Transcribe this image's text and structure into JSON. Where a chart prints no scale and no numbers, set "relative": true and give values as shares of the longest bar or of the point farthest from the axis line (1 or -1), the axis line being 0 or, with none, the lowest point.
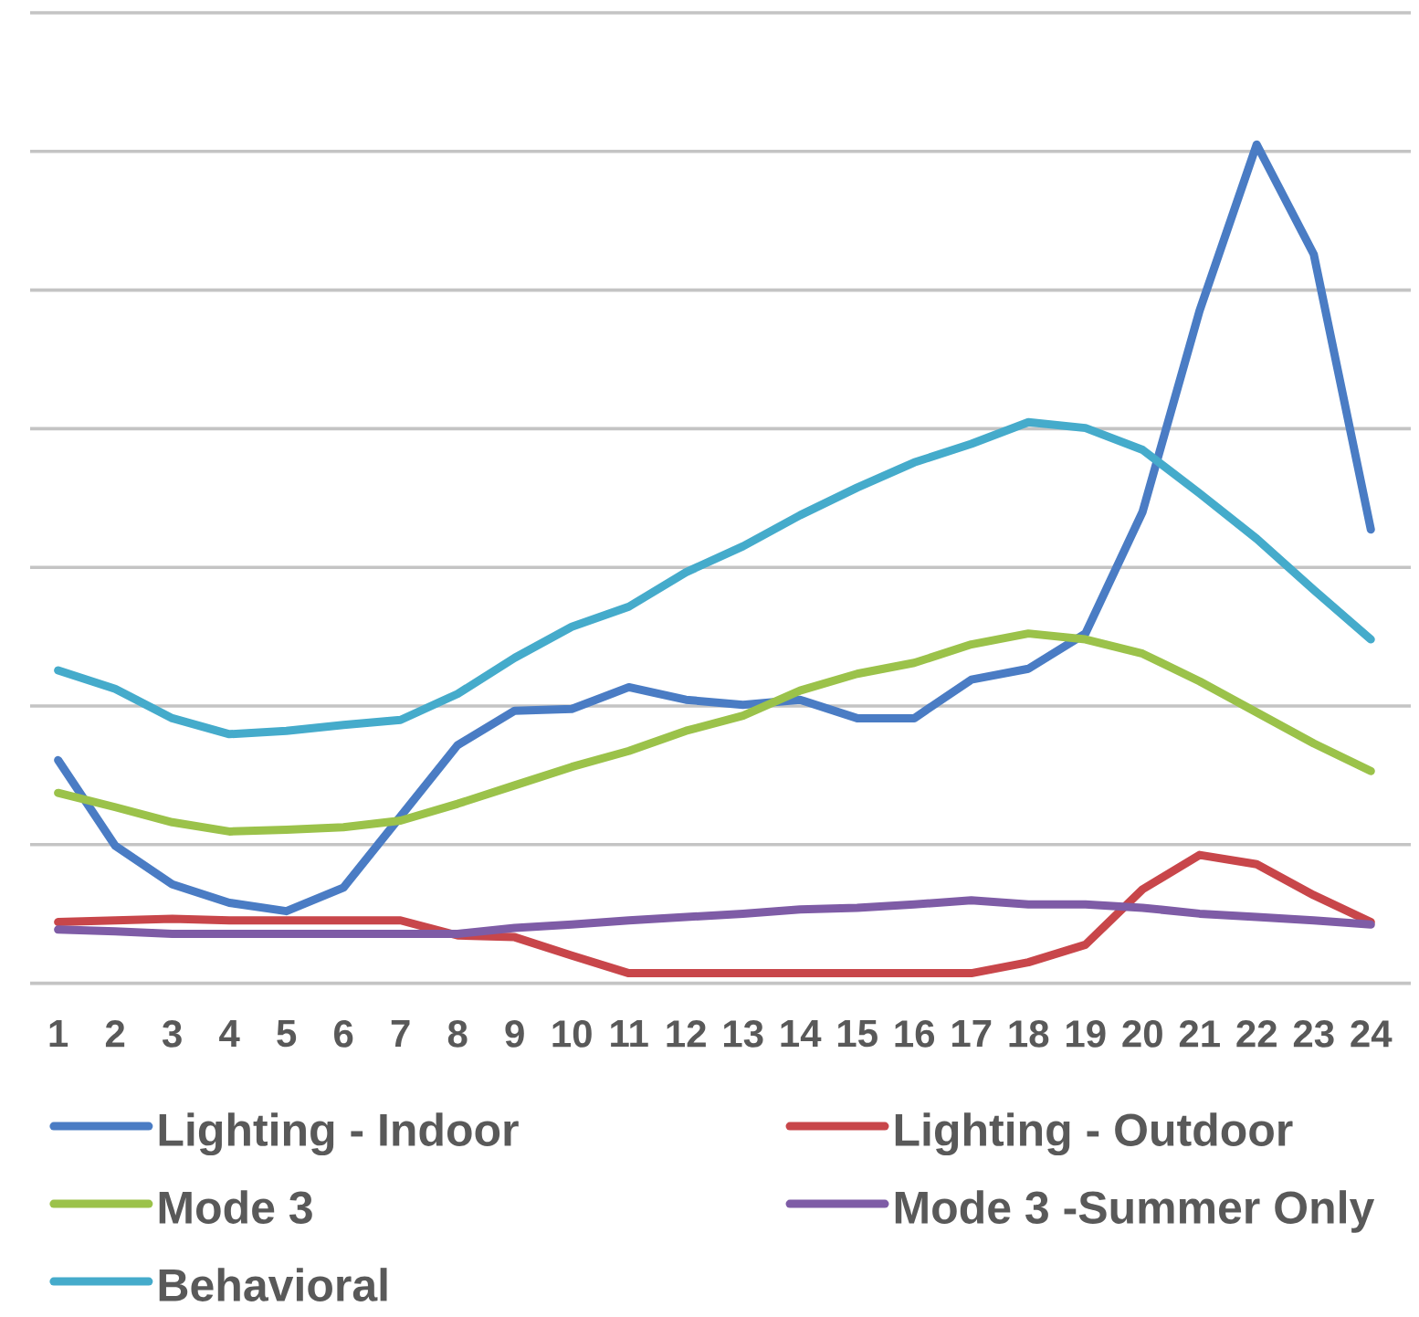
{
  "chart_data": {
    "type": "line",
    "relative": true,
    "grid": "y",
    "legend": "bottom",
    "categories": [
      "1",
      "2",
      "3",
      "4",
      "5",
      "6",
      "7",
      "8",
      "9",
      "10",
      "11",
      "12",
      "13",
      "14",
      "15",
      "16",
      "17",
      "18",
      "19",
      "20",
      "21",
      "22",
      "23",
      "24"
    ],
    "series": [
      {
        "name": "Lighting - Indoor",
        "color": "#4a7cc4",
        "values": [
          0.266,
          0.164,
          0.118,
          0.096,
          0.086,
          0.114,
          0.199,
          0.284,
          0.325,
          0.327,
          0.353,
          0.338,
          0.332,
          0.338,
          0.316,
          0.316,
          0.362,
          0.375,
          0.417,
          0.562,
          0.802,
          1,
          0.869,
          0.541
        ]
      },
      {
        "name": "Lighting - Outdoor",
        "color": "#c8464a",
        "values": [
          0.073,
          0.075,
          0.077,
          0.075,
          0.075,
          0.075,
          0.075,
          0.057,
          0.055,
          0.033,
          0.012,
          0.012,
          0.012,
          0.012,
          0.012,
          0.012,
          0.012,
          0.025,
          0.046,
          0.112,
          0.153,
          0.142,
          0.105,
          0.073
        ]
      },
      {
        "name": "Mode 3",
        "color": "#9bc24a",
        "values": [
          0.227,
          0.21,
          0.192,
          0.181,
          0.183,
          0.186,
          0.194,
          0.214,
          0.236,
          0.258,
          0.277,
          0.301,
          0.319,
          0.349,
          0.369,
          0.382,
          0.404,
          0.417,
          0.41,
          0.393,
          0.36,
          0.323,
          0.286,
          0.253
        ]
      },
      {
        "name": "Mode 3 -Summer Only",
        "color": "#7e5ca6",
        "values": [
          0.064,
          0.062,
          0.059,
          0.059,
          0.059,
          0.059,
          0.059,
          0.059,
          0.066,
          0.07,
          0.075,
          0.079,
          0.083,
          0.088,
          0.09,
          0.094,
          0.099,
          0.094,
          0.094,
          0.09,
          0.083,
          0.079,
          0.075,
          0.07
        ]
      },
      {
        "name": "Behavioral",
        "color": "#45abcb",
        "values": [
          0.373,
          0.351,
          0.316,
          0.297,
          0.301,
          0.308,
          0.314,
          0.345,
          0.388,
          0.425,
          0.449,
          0.49,
          0.521,
          0.558,
          0.591,
          0.621,
          0.643,
          0.669,
          0.662,
          0.636,
          0.584,
          0.53,
          0.469,
          0.41
        ]
      }
    ]
  }
}
